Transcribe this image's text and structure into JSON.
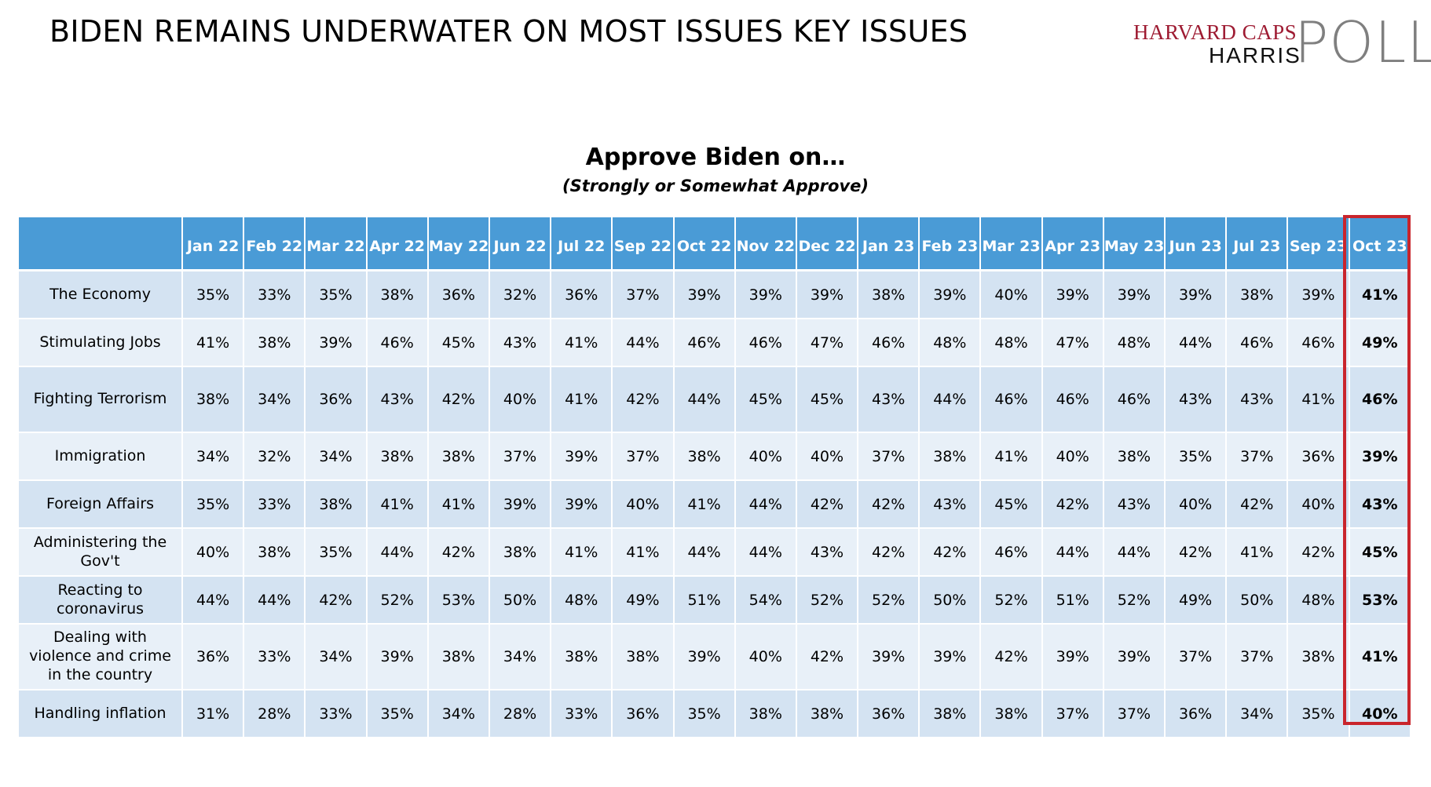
{
  "slide_title": "BIDEN REMAINS UNDERWATER ON MOST ISSUES KEY ISSUES",
  "logo": {
    "line1": "HARVARD CAPS",
    "line2": "HARRIS",
    "word": "POLL"
  },
  "table": {
    "title": "Approve Biden on…",
    "subtitle": "(Strongly or Somewhat Approve)",
    "columns": [
      "Jan 22",
      "Feb 22",
      "Mar 22",
      "Apr 22",
      "May 22",
      "Jun 22",
      "Jul 22",
      "Sep 22",
      "Oct 22",
      "Nov 22",
      "Dec 22",
      "Jan 23",
      "Feb 23",
      "Mar 23",
      "Apr 23",
      "May 23",
      "Jun 23",
      "Jul 23",
      "Sep 23",
      "Oct 23"
    ],
    "highlighted_column": "Oct 23",
    "rows": [
      {
        "label": "The Economy",
        "values": [
          "35%",
          "33%",
          "35%",
          "38%",
          "36%",
          "32%",
          "36%",
          "37%",
          "39%",
          "39%",
          "39%",
          "38%",
          "39%",
          "40%",
          "39%",
          "39%",
          "39%",
          "38%",
          "39%",
          "41%"
        ]
      },
      {
        "label": "Stimulating Jobs",
        "values": [
          "41%",
          "38%",
          "39%",
          "46%",
          "45%",
          "43%",
          "41%",
          "44%",
          "46%",
          "46%",
          "47%",
          "46%",
          "48%",
          "48%",
          "47%",
          "48%",
          "44%",
          "46%",
          "46%",
          "49%"
        ]
      },
      {
        "label": "Fighting Terrorism",
        "values": [
          "38%",
          "34%",
          "36%",
          "43%",
          "42%",
          "40%",
          "41%",
          "42%",
          "44%",
          "45%",
          "45%",
          "43%",
          "44%",
          "46%",
          "46%",
          "46%",
          "43%",
          "43%",
          "41%",
          "46%"
        ]
      },
      {
        "label": "Immigration",
        "values": [
          "34%",
          "32%",
          "34%",
          "38%",
          "38%",
          "37%",
          "39%",
          "37%",
          "38%",
          "40%",
          "40%",
          "37%",
          "38%",
          "41%",
          "40%",
          "38%",
          "35%",
          "37%",
          "36%",
          "39%"
        ]
      },
      {
        "label": "Foreign Affairs",
        "values": [
          "35%",
          "33%",
          "38%",
          "41%",
          "41%",
          "39%",
          "39%",
          "40%",
          "41%",
          "44%",
          "42%",
          "42%",
          "43%",
          "45%",
          "42%",
          "43%",
          "40%",
          "42%",
          "40%",
          "43%"
        ]
      },
      {
        "label": "Administering the Gov't",
        "values": [
          "40%",
          "38%",
          "35%",
          "44%",
          "42%",
          "38%",
          "41%",
          "41%",
          "44%",
          "44%",
          "43%",
          "42%",
          "42%",
          "46%",
          "44%",
          "44%",
          "42%",
          "41%",
          "42%",
          "45%"
        ]
      },
      {
        "label": "Reacting to coronavirus",
        "values": [
          "44%",
          "44%",
          "42%",
          "52%",
          "53%",
          "50%",
          "48%",
          "49%",
          "51%",
          "54%",
          "52%",
          "52%",
          "50%",
          "52%",
          "51%",
          "52%",
          "49%",
          "50%",
          "48%",
          "53%"
        ]
      },
      {
        "label": "Dealing with violence and crime in the country",
        "values": [
          "36%",
          "33%",
          "34%",
          "39%",
          "38%",
          "34%",
          "38%",
          "38%",
          "39%",
          "40%",
          "42%",
          "39%",
          "39%",
          "42%",
          "39%",
          "39%",
          "37%",
          "37%",
          "38%",
          "41%"
        ]
      },
      {
        "label": "Handling inflation",
        "values": [
          "31%",
          "28%",
          "33%",
          "35%",
          "34%",
          "28%",
          "33%",
          "36%",
          "35%",
          "38%",
          "38%",
          "36%",
          "38%",
          "38%",
          "37%",
          "37%",
          "36%",
          "34%",
          "35%",
          "40%"
        ]
      }
    ]
  },
  "colors": {
    "header_bg": "#4a9bd6",
    "row_dark": "#d4e3f2",
    "row_light": "#e8f0f8",
    "highlight": "#c9252c",
    "logo_red": "#9e1b32",
    "logo_gray": "#7f7f7f"
  }
}
